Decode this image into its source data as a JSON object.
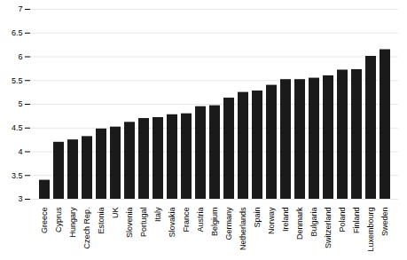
{
  "chart_data": {
    "type": "bar",
    "categories": [
      "Greece",
      "Cyprus",
      "Hungary",
      "Czech Rep.",
      "Estonia",
      "UK",
      "Slovenia",
      "Portugal",
      "Italy",
      "Slovakia",
      "France",
      "Austria",
      "Belgium",
      "Germany",
      "Netherlands",
      "Spain",
      "Norway",
      "Ireland",
      "Denmark",
      "Bulgaria",
      "Switzerland",
      "Poland",
      "Finland",
      "Luxembourg",
      "Sweden"
    ],
    "values": [
      3.4,
      4.2,
      4.25,
      4.32,
      4.48,
      4.52,
      4.62,
      4.7,
      4.72,
      4.78,
      4.8,
      4.95,
      4.97,
      5.13,
      5.25,
      5.28,
      5.4,
      5.52,
      5.52,
      5.55,
      5.6,
      5.72,
      5.73,
      6.01,
      6.15
    ],
    "color": "#1a1a1a",
    "ylim": [
      3,
      7
    ],
    "yticks": [
      3,
      3.5,
      4,
      4.5,
      5,
      5.5,
      6,
      6.5,
      7
    ],
    "grid": true
  }
}
